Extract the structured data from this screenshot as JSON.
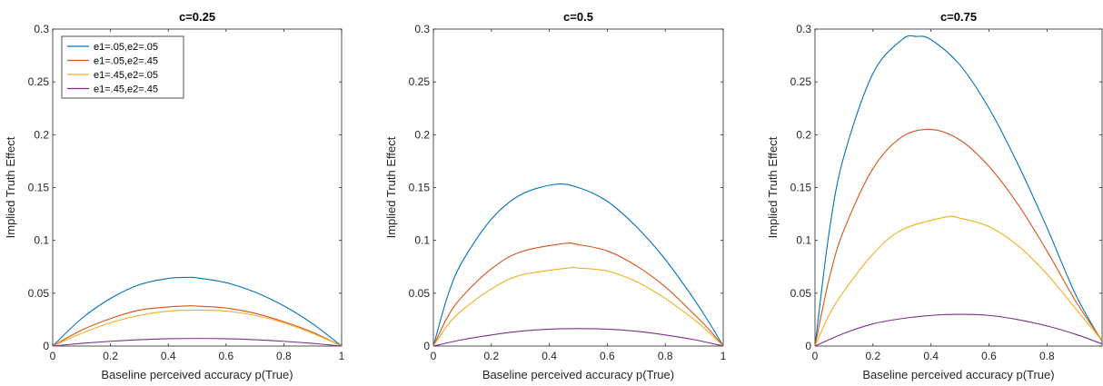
{
  "chart_data": [
    {
      "type": "line",
      "title": "c=0.25",
      "xlabel": "Baseline perceived accuracy p(True)",
      "ylabel": "Implied Truth Effect",
      "xlim": [
        0,
        1
      ],
      "ylim": [
        0,
        0.3
      ],
      "xticks": [
        "0",
        "0.2",
        "0.4",
        "0.6",
        "0.8",
        "1"
      ],
      "yticks": [
        "0",
        "0.05",
        "0.1",
        "0.15",
        "0.2",
        "0.25",
        "0.3"
      ],
      "grid": false,
      "legend": "top-left",
      "series": [
        {
          "name": "e1=.05,e2=.05",
          "color": "#0072BD",
          "x": [
            0,
            0.1,
            0.2,
            0.3,
            0.4,
            0.47,
            0.5,
            0.6,
            0.7,
            0.8,
            0.9,
            1
          ],
          "y": [
            0,
            0.026,
            0.045,
            0.058,
            0.064,
            0.065,
            0.0645,
            0.06,
            0.051,
            0.038,
            0.021,
            0
          ]
        },
        {
          "name": "e1=.05,e2=.45",
          "color": "#D95319",
          "x": [
            0,
            0.1,
            0.2,
            0.3,
            0.4,
            0.47,
            0.5,
            0.6,
            0.7,
            0.8,
            0.9,
            1
          ],
          "y": [
            0,
            0.015,
            0.026,
            0.034,
            0.037,
            0.038,
            0.0378,
            0.036,
            0.031,
            0.023,
            0.013,
            0
          ]
        },
        {
          "name": "e1=.45,e2=.05",
          "color": "#EDB120",
          "x": [
            0,
            0.1,
            0.2,
            0.3,
            0.4,
            0.5,
            0.6,
            0.7,
            0.8,
            0.9,
            1
          ],
          "y": [
            0,
            0.012,
            0.022,
            0.029,
            0.033,
            0.034,
            0.033,
            0.029,
            0.022,
            0.012,
            0
          ]
        },
        {
          "name": "e1=.45,e2=.45",
          "color": "#7E2F8E",
          "x": [
            0,
            0.1,
            0.2,
            0.3,
            0.4,
            0.5,
            0.6,
            0.7,
            0.8,
            0.9,
            1
          ],
          "y": [
            0,
            0.0025,
            0.0045,
            0.006,
            0.0069,
            0.0072,
            0.0069,
            0.006,
            0.0045,
            0.0025,
            0
          ]
        }
      ]
    },
    {
      "type": "line",
      "title": "c=0.5",
      "xlabel": "Baseline perceived accuracy p(True)",
      "ylabel": "Implied Truth Effect",
      "xlim": [
        0,
        1
      ],
      "ylim": [
        0,
        0.3
      ],
      "xticks": [
        "0",
        "0.2",
        "0.4",
        "0.6",
        "0.8",
        "1"
      ],
      "yticks": [
        "0",
        "0.05",
        "0.1",
        "0.15",
        "0.2",
        "0.25",
        "0.3"
      ],
      "grid": false,
      "series": [
        {
          "name": "e1=.05,e2=.05",
          "color": "#0072BD",
          "x": [
            0,
            0.05,
            0.1,
            0.2,
            0.3,
            0.42,
            0.5,
            0.6,
            0.7,
            0.8,
            0.9,
            0.95,
            1
          ],
          "y": [
            0,
            0.048,
            0.08,
            0.12,
            0.143,
            0.153,
            0.15,
            0.137,
            0.113,
            0.082,
            0.044,
            0.023,
            0
          ]
        },
        {
          "name": "e1=.05,e2=.45",
          "color": "#D95319",
          "x": [
            0,
            0.05,
            0.1,
            0.2,
            0.3,
            0.45,
            0.5,
            0.6,
            0.7,
            0.8,
            0.9,
            0.95,
            1
          ],
          "y": [
            0,
            0.028,
            0.047,
            0.073,
            0.089,
            0.097,
            0.096,
            0.09,
            0.076,
            0.056,
            0.03,
            0.016,
            0
          ]
        },
        {
          "name": "e1=.45,e2=.05",
          "color": "#EDB120",
          "x": [
            0,
            0.05,
            0.1,
            0.2,
            0.3,
            0.47,
            0.5,
            0.6,
            0.7,
            0.8,
            0.9,
            0.95,
            1
          ],
          "y": [
            0,
            0.02,
            0.034,
            0.054,
            0.067,
            0.074,
            0.0738,
            0.071,
            0.061,
            0.045,
            0.025,
            0.013,
            0
          ]
        },
        {
          "name": "e1=.45,e2=.45",
          "color": "#7E2F8E",
          "x": [
            0,
            0.1,
            0.2,
            0.3,
            0.4,
            0.5,
            0.6,
            0.7,
            0.8,
            0.9,
            1
          ],
          "y": [
            0,
            0.006,
            0.0105,
            0.014,
            0.016,
            0.0165,
            0.016,
            0.014,
            0.0105,
            0.006,
            0
          ]
        }
      ]
    },
    {
      "type": "line",
      "title": "c=0.75",
      "xlabel": "Baseline perceived accuracy p(True)",
      "ylabel": "Implied Truth Effect",
      "xlim": [
        0,
        0.99
      ],
      "ylim": [
        0,
        0.3
      ],
      "xticks": [
        "0",
        "0.2",
        "0.4",
        "0.6",
        "0.8"
      ],
      "yticks": [
        "0",
        "0.05",
        "0.1",
        "0.15",
        "0.2",
        "0.25",
        "0.3"
      ],
      "grid": false,
      "series": [
        {
          "name": "e1=.05,e2=.05",
          "color": "#0072BD",
          "x": [
            0,
            0.05,
            0.1,
            0.2,
            0.3,
            0.35,
            0.4,
            0.5,
            0.6,
            0.7,
            0.8,
            0.9,
            0.99
          ],
          "y": [
            0,
            0.11,
            0.18,
            0.258,
            0.29,
            0.293,
            0.29,
            0.266,
            0.225,
            0.172,
            0.112,
            0.048,
            0.004
          ]
        },
        {
          "name": "e1=.05,e2=.45",
          "color": "#D95319",
          "x": [
            0,
            0.05,
            0.1,
            0.2,
            0.3,
            0.4,
            0.5,
            0.6,
            0.7,
            0.8,
            0.9,
            0.99
          ],
          "y": [
            0,
            0.065,
            0.11,
            0.168,
            0.198,
            0.205,
            0.195,
            0.17,
            0.134,
            0.09,
            0.042,
            0.005
          ]
        },
        {
          "name": "e1=.45,e2=.05",
          "color": "#EDB120",
          "x": [
            0,
            0.05,
            0.1,
            0.2,
            0.3,
            0.45,
            0.5,
            0.6,
            0.7,
            0.8,
            0.9,
            0.99
          ],
          "y": [
            0,
            0.03,
            0.052,
            0.087,
            0.11,
            0.122,
            0.121,
            0.113,
            0.095,
            0.068,
            0.035,
            0.005
          ]
        },
        {
          "name": "e1=.45,e2=.45",
          "color": "#7E2F8E",
          "x": [
            0,
            0.1,
            0.2,
            0.3,
            0.4,
            0.5,
            0.6,
            0.7,
            0.8,
            0.9,
            0.99
          ],
          "y": [
            0,
            0.012,
            0.021,
            0.026,
            0.029,
            0.03,
            0.029,
            0.025,
            0.019,
            0.011,
            0.002
          ]
        }
      ]
    }
  ]
}
